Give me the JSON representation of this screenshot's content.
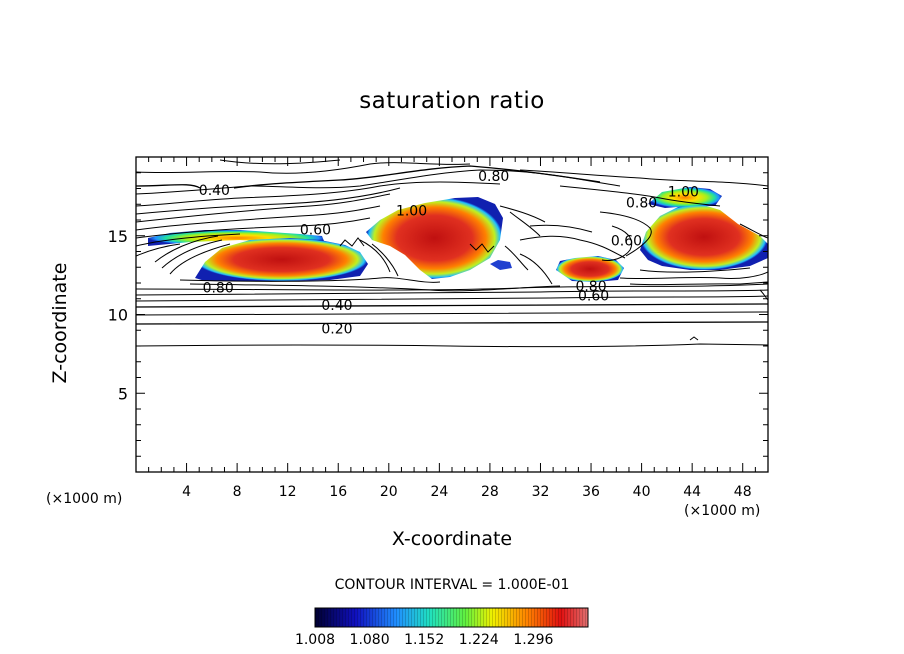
{
  "title": "saturation ratio",
  "chart_data": {
    "type": "heatmap",
    "title": "saturation ratio",
    "xlabel": "X-coordinate",
    "ylabel": "Z-coordinate",
    "x_unit": "(×1000 m)",
    "xlim": [
      0,
      50
    ],
    "ylim": [
      0,
      20
    ],
    "x_ticks": [
      "4",
      "8",
      "12",
      "16",
      "20",
      "24",
      "28",
      "32",
      "36",
      "40",
      "44",
      "48"
    ],
    "y_ticks": [
      "5",
      "10",
      "15"
    ],
    "contour_labels": [
      {
        "text": "0.40",
        "x": 6.2,
        "z": 17.9
      },
      {
        "text": "0.80",
        "x": 28.3,
        "z": 18.8
      },
      {
        "text": "0.60",
        "x": 14.2,
        "z": 15.4
      },
      {
        "text": "1.00",
        "x": 21.8,
        "z": 16.6
      },
      {
        "text": "0.80",
        "x": 40.0,
        "z": 17.1
      },
      {
        "text": "1.00",
        "x": 43.3,
        "z": 17.8
      },
      {
        "text": "0.60",
        "x": 38.8,
        "z": 14.7
      },
      {
        "text": "0.80",
        "x": 6.5,
        "z": 11.7
      },
      {
        "text": "0.40",
        "x": 15.9,
        "z": 10.6
      },
      {
        "text": "0.20",
        "x": 15.9,
        "z": 9.1
      },
      {
        "text": "0.80",
        "x": 36.0,
        "z": 11.8
      },
      {
        "text": "0.60",
        "x": 36.2,
        "z": 11.2
      }
    ],
    "contour_interval": "CONTOUR INTERVAL = 1.000E-01",
    "colorbar": {
      "ticks": [
        "1.008",
        "1.080",
        "1.152",
        "1.224",
        "1.296"
      ],
      "colors": [
        "#000040",
        "#0000a0",
        "#1040ff",
        "#20a0ff",
        "#20e0c0",
        "#40f040",
        "#a0f020",
        "#f0f000",
        "#ffa000",
        "#ff3000",
        "#d01010",
        "#e06060"
      ]
    }
  },
  "labels": {
    "xunit_left": "(×1000 m)",
    "xunit_right": "(×1000 m)"
  }
}
